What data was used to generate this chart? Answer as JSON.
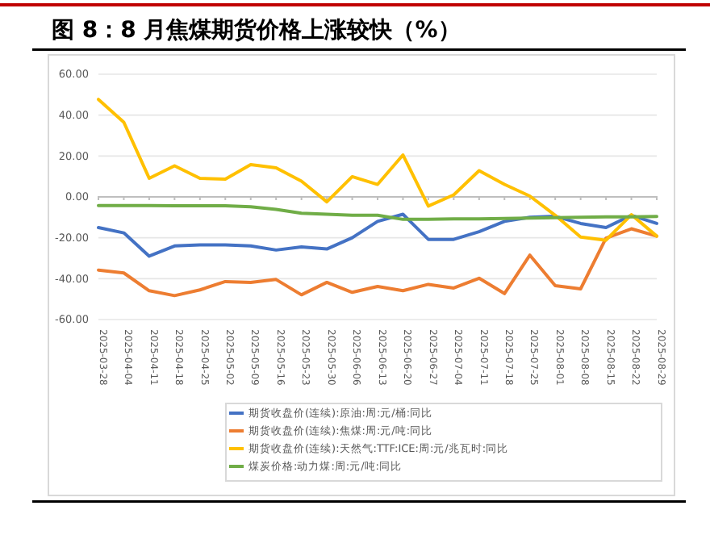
{
  "chart_data": {
    "type": "line",
    "title": "图 8：8 月焦煤期货价格上涨较快（%）",
    "categories": [
      "2025-03-28",
      "2025-04-04",
      "2025-04-11",
      "2025-04-18",
      "2025-04-25",
      "2025-05-02",
      "2025-05-09",
      "2025-05-16",
      "2025-05-23",
      "2025-05-30",
      "2025-06-06",
      "2025-06-13",
      "2025-06-20",
      "2025-06-27",
      "2025-07-04",
      "2025-07-11",
      "2025-07-18",
      "2025-07-25",
      "2025-08-01",
      "2025-08-08",
      "2025-08-15",
      "2025-08-22",
      "2025-08-29"
    ],
    "series": [
      {
        "name": "期货收盘价(连续):原油:周:元/桶:同比",
        "color": "#4472c4",
        "values": [
          -15,
          -17.6,
          -29,
          -24,
          -23.5,
          -23.5,
          -24,
          -26,
          -24.5,
          -25.5,
          -20,
          -12,
          -8.5,
          -20.8,
          -20.8,
          -17,
          -12,
          -10,
          -9.5,
          -13,
          -15,
          -9,
          -13
        ]
      },
      {
        "name": "期货收盘价(连续):焦煤:周:元/吨:同比",
        "color": "#ed7d31",
        "values": [
          -35.8,
          -37.2,
          -45.9,
          -48.3,
          -45.5,
          -41.4,
          -41.8,
          -40.4,
          -47.9,
          -41.8,
          -46.7,
          -43.8,
          -45.9,
          -42.8,
          -44.6,
          -39.8,
          -47.3,
          -28.5,
          -43.4,
          -45,
          -20.2,
          -15.6,
          -19.2
        ]
      },
      {
        "name": "期货收盘价(连续):天然气:TTF:ICE:周:元/兆瓦时:同比",
        "color": "#ffc000",
        "values": [
          47.7,
          36.5,
          9.1,
          15.2,
          9.1,
          8.7,
          15.8,
          14.2,
          7.7,
          -2.4,
          9.9,
          6.1,
          20.5,
          -4.5,
          1,
          12.8,
          6.1,
          0.4,
          -9,
          -19.6,
          -21.2,
          -8.7,
          -19.2
        ]
      },
      {
        "name": "煤炭价格:动力煤:周:元/吨:同比",
        "color": "#70ad47",
        "values": [
          -4.2,
          -4.2,
          -4.2,
          -4.3,
          -4.3,
          -4.3,
          -4.8,
          -6.1,
          -8,
          -8.5,
          -9,
          -9,
          -11,
          -11,
          -10.8,
          -10.8,
          -10.6,
          -10.4,
          -10.2,
          -10,
          -9.8,
          -9.8,
          -9.6
        ]
      }
    ],
    "ylim": [
      -60,
      60
    ],
    "yticks": [
      {
        "value": -60,
        "label": "-60.00"
      },
      {
        "value": -40,
        "label": "-40.00"
      },
      {
        "value": -20,
        "label": "-20.00"
      },
      {
        "value": 0,
        "label": "0.00"
      },
      {
        "value": 20,
        "label": "20.00"
      },
      {
        "value": 40,
        "label": "40.00"
      },
      {
        "value": 60,
        "label": "60.00"
      }
    ],
    "grid": "y",
    "legend": "bottom",
    "marker": "none",
    "line_style": "solid"
  }
}
